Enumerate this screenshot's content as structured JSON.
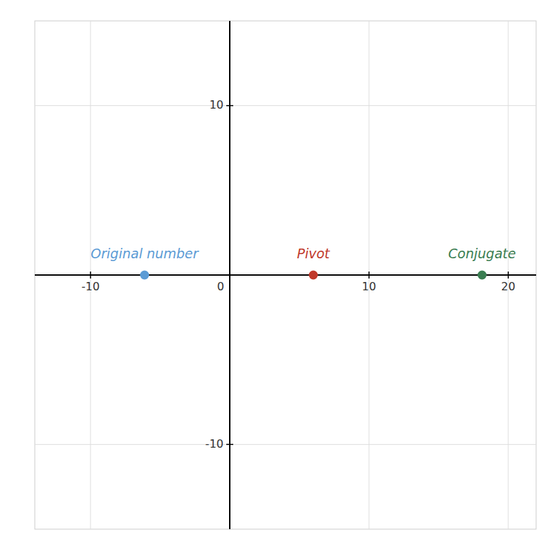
{
  "chart_data": {
    "type": "scatter",
    "x": [
      -6.12,
      6,
      18.12
    ],
    "values": [
      0,
      0,
      0
    ],
    "colors": [
      "#5b9bd5",
      "#c0392b",
      "#3a7d51"
    ],
    "annotations": [
      "Original number",
      "Pivot",
      "Conjugate"
    ],
    "xlim": [
      -14,
      22
    ],
    "ylim": [
      -15,
      15
    ],
    "xticks": [
      -10,
      0,
      10,
      20
    ],
    "yticks": [
      -10,
      10
    ],
    "grid": true
  }
}
